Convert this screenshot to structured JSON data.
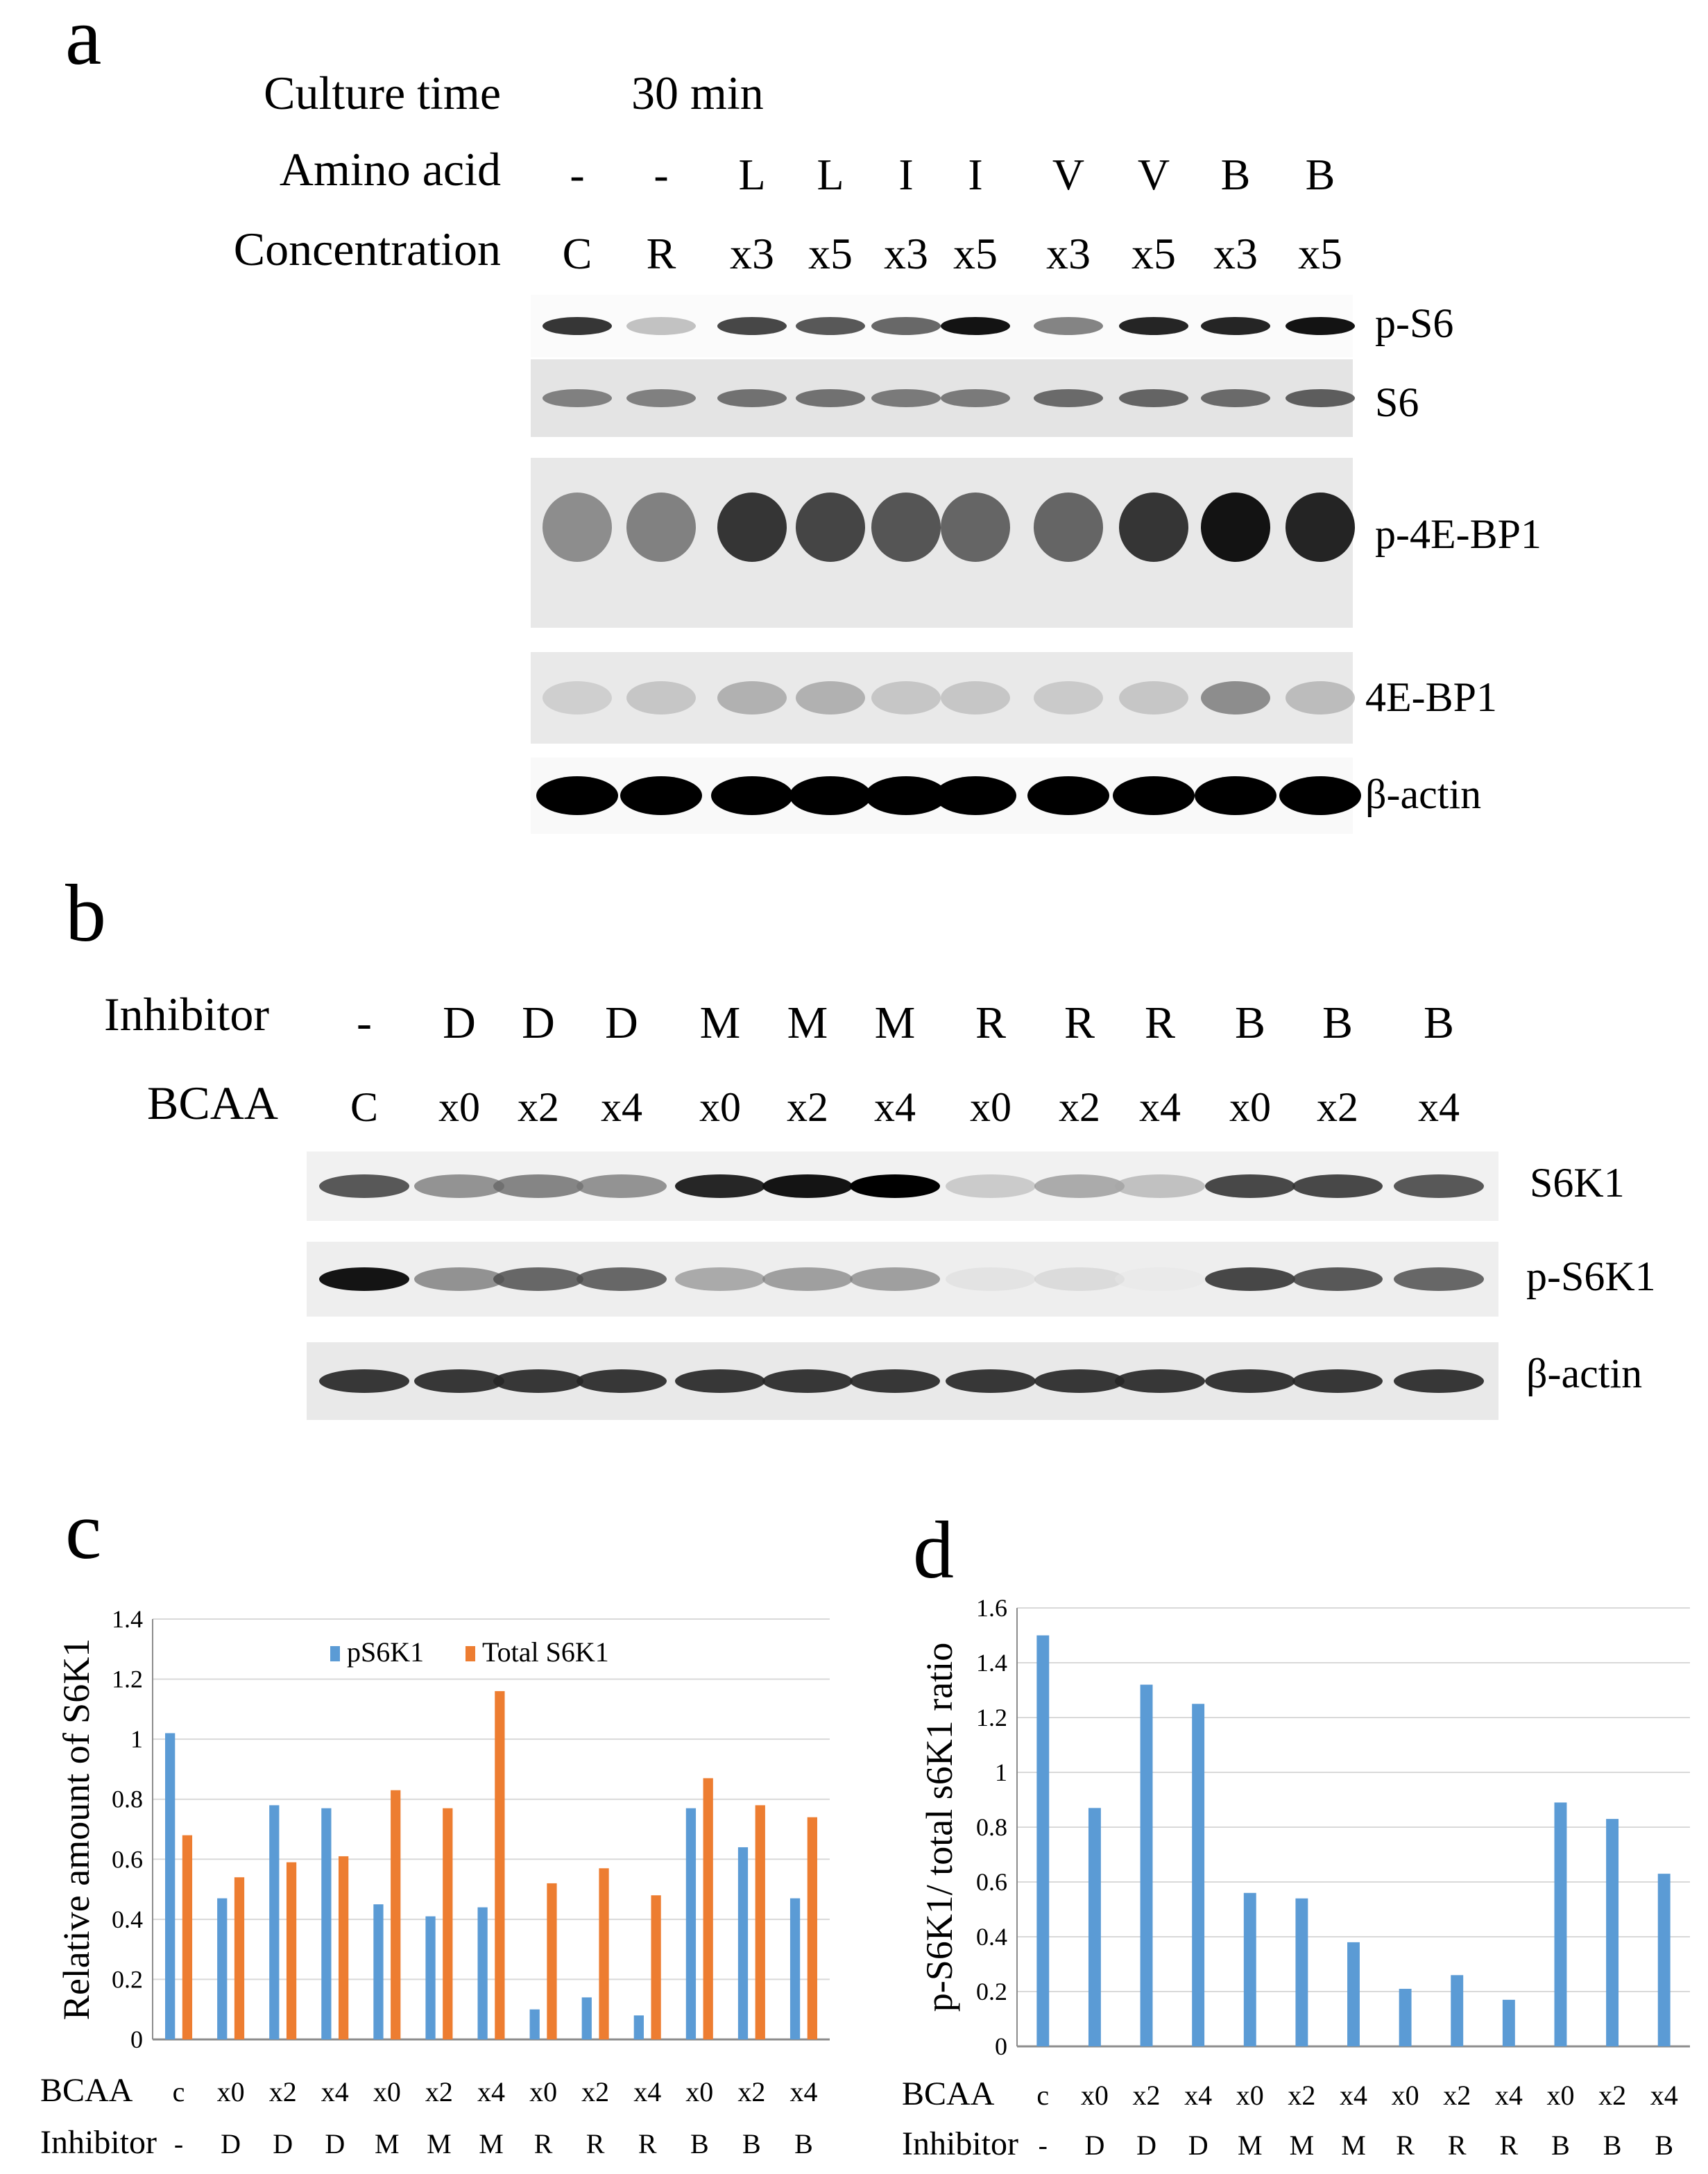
{
  "panel_a": {
    "letter": "a",
    "culture_time_label": "Culture time",
    "culture_time_value": "30 min",
    "amino_acid_label": "Amino acid",
    "concentration_label": "Concentration",
    "lanes": [
      {
        "amino": "-",
        "conc": "C"
      },
      {
        "amino": "-",
        "conc": "R"
      },
      {
        "amino": "L",
        "conc": "x3"
      },
      {
        "amino": "L",
        "conc": "x5"
      },
      {
        "amino": "I",
        "conc": "x3"
      },
      {
        "amino": "I",
        "conc": "x5"
      },
      {
        "amino": "V",
        "conc": "x3"
      },
      {
        "amino": "V",
        "conc": "x5"
      },
      {
        "amino": "B",
        "conc": "x3"
      },
      {
        "amino": "B",
        "conc": "x5"
      }
    ],
    "blots": [
      "p-S6",
      "S6",
      "p-4E-BP1",
      "4E-BP1",
      "β-actin"
    ]
  },
  "panel_b": {
    "letter": "b",
    "inhibitor_label": "Inhibitor",
    "bcaa_label": "BCAA",
    "lanes": [
      {
        "inhibitor": "-",
        "bcaa": "C"
      },
      {
        "inhibitor": "D",
        "bcaa": "x0"
      },
      {
        "inhibitor": "D",
        "bcaa": "x2"
      },
      {
        "inhibitor": "D",
        "bcaa": "x4"
      },
      {
        "inhibitor": "M",
        "bcaa": "x0"
      },
      {
        "inhibitor": "M",
        "bcaa": "x2"
      },
      {
        "inhibitor": "M",
        "bcaa": "x4"
      },
      {
        "inhibitor": "R",
        "bcaa": "x0"
      },
      {
        "inhibitor": "R",
        "bcaa": "x2"
      },
      {
        "inhibitor": "R",
        "bcaa": "x4"
      },
      {
        "inhibitor": "B",
        "bcaa": "x0"
      },
      {
        "inhibitor": "B",
        "bcaa": "x2"
      },
      {
        "inhibitor": "B",
        "bcaa": "x4"
      }
    ],
    "blots": [
      "S6K1",
      "p-S6K1",
      "β-actin"
    ]
  },
  "panel_c": {
    "letter": "c"
  },
  "panel_d": {
    "letter": "d"
  },
  "colors": {
    "pS6K1": "#5B9BD5",
    "total_S6K1": "#ED7D31",
    "grid": "#d9d9d9",
    "axis": "#8c8c8c"
  },
  "chart_data": [
    {
      "id": "c",
      "type": "bar",
      "ylabel": "Relative amount of S6K1",
      "ylim": [
        0,
        1.4
      ],
      "yticks": [
        "0",
        "0.2",
        "0.4",
        "0.6",
        "0.8",
        "1",
        "1.2",
        "1.4"
      ],
      "grid": true,
      "legend_position": "top",
      "row_labels": [
        "BCAA",
        "Inhibitor"
      ],
      "categories": [
        "c",
        "x0",
        "x2",
        "x4",
        "x0",
        "x2",
        "x4",
        "x0",
        "x2",
        "x4",
        "x0",
        "x2",
        "x4"
      ],
      "inhibitors": [
        "-",
        "D",
        "D",
        "D",
        "M",
        "M",
        "M",
        "R",
        "R",
        "R",
        "B",
        "B",
        "B"
      ],
      "series": [
        {
          "name": "pS6K1",
          "color": "#5B9BD5",
          "values": [
            1.02,
            0.47,
            0.78,
            0.77,
            0.45,
            0.41,
            0.44,
            0.1,
            0.14,
            0.08,
            0.77,
            0.64,
            0.47
          ]
        },
        {
          "name": "Total S6K1",
          "color": "#ED7D31",
          "values": [
            0.68,
            0.54,
            0.59,
            0.61,
            0.83,
            0.77,
            1.16,
            0.52,
            0.57,
            0.48,
            0.87,
            0.78,
            0.74
          ]
        }
      ]
    },
    {
      "id": "d",
      "type": "bar",
      "ylabel": "p-S6K1/ total s6K1 ratio",
      "ylim": [
        0,
        1.6
      ],
      "yticks": [
        "0",
        "0.2",
        "0.4",
        "0.6",
        "0.8",
        "1",
        "1.2",
        "1.4",
        "1.6"
      ],
      "grid": true,
      "row_labels": [
        "BCAA",
        "Inhibitor"
      ],
      "categories": [
        "c",
        "x0",
        "x2",
        "x4",
        "x0",
        "x2",
        "x4",
        "x0",
        "x2",
        "x4",
        "x0",
        "x2",
        "x4"
      ],
      "inhibitors": [
        "-",
        "D",
        "D",
        "D",
        "M",
        "M",
        "M",
        "R",
        "R",
        "R",
        "B",
        "B",
        "B"
      ],
      "series": [
        {
          "color": "#5B9BD5",
          "values": [
            1.5,
            0.87,
            1.32,
            1.25,
            0.56,
            0.54,
            0.38,
            0.21,
            0.26,
            0.17,
            0.89,
            0.83,
            0.63
          ]
        }
      ]
    }
  ]
}
